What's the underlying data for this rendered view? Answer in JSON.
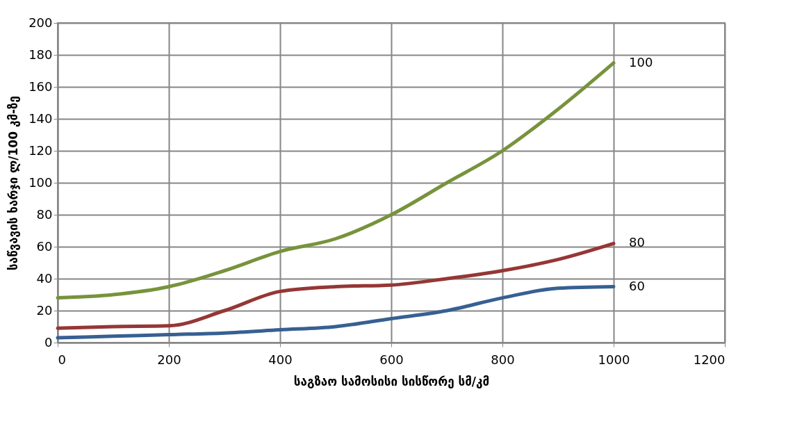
{
  "chart_data": {
    "type": "line",
    "xlabel": "საგზაო სამოსისი სისწორე სმ/კმ",
    "ylabel": "საწვავის ხარჯი ლ/100 კმ-ზე",
    "x": [
      0,
      100,
      200,
      300,
      400,
      500,
      600,
      700,
      800,
      900,
      1000
    ],
    "series": [
      {
        "name": "60",
        "color": "#376092",
        "values": [
          3,
          4,
          5,
          6,
          8,
          10,
          15,
          20,
          28,
          34,
          35
        ]
      },
      {
        "name": "80",
        "color": "#953735",
        "values": [
          9,
          10,
          10.5,
          20,
          32,
          35,
          36,
          40,
          45,
          52,
          62
        ]
      },
      {
        "name": "100",
        "color": "#77933c",
        "values": [
          28,
          30,
          35,
          45,
          57,
          65,
          80,
          100,
          120,
          146,
          175
        ]
      }
    ],
    "xlim": [
      0,
      1200
    ],
    "xticks": [
      0,
      200,
      400,
      600,
      800,
      1000,
      1200
    ],
    "ylim": [
      0,
      200
    ],
    "yticks": [
      0,
      20,
      40,
      60,
      80,
      100,
      120,
      140,
      160,
      180,
      200
    ],
    "grid": true,
    "legend": false,
    "marker": "none",
    "line_style": "solid"
  }
}
